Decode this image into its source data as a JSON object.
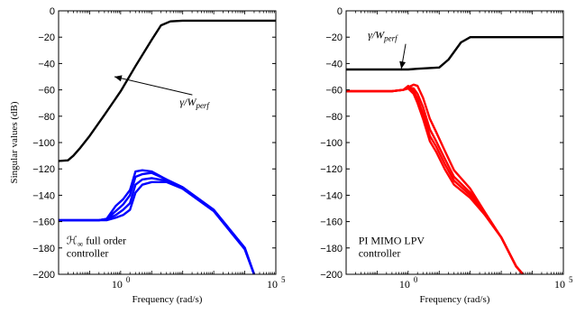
{
  "chart_data": [
    {
      "type": "line",
      "xscale": "log",
      "xlim": [
        0.01,
        100000
      ],
      "ylim": [
        -200,
        0
      ],
      "x_ticks": [
        {
          "value": 1,
          "label": "10",
          "exp": "0"
        },
        {
          "value": 100000,
          "label": "10",
          "exp": "5"
        }
      ],
      "y_ticks": [
        0,
        -20,
        -40,
        -60,
        -80,
        -100,
        -120,
        -140,
        -160,
        -180,
        -200
      ],
      "y_tick_labels": [
        "0",
        "−20",
        "−40",
        "−60",
        "−80",
        "−100",
        "−120",
        "−140",
        "−160",
        "−180",
        "−200"
      ],
      "xlabel": "Frequency (rad/s)",
      "ylabel": "Singular values (dB)",
      "grid": false,
      "annotations": [
        {
          "text_main": "γ/W",
          "text_sub": "perf",
          "arrow_to": [
            0.63,
            -50
          ],
          "text_at": [
            80,
            -72
          ]
        },
        {
          "text_line1_prefix": "ℋ",
          "text_line1_sub": "∞",
          "text_line1_suffix": " full order",
          "text_line2": "controller",
          "text_at": [
            0.018,
            -177
          ]
        }
      ],
      "series": [
        {
          "color": "#000000",
          "x": [
            0.01,
            0.02,
            0.03,
            0.05,
            0.1,
            0.3,
            1,
            3,
            10,
            20,
            40,
            100,
            1000,
            100000
          ],
          "y": [
            -114,
            -113.5,
            -110,
            -104,
            -95,
            -79,
            -61,
            -42,
            -22,
            -11,
            -8,
            -7.5,
            -7.5,
            -7.5
          ]
        },
        {
          "color": "#0000ff",
          "x": [
            0.01,
            0.1,
            0.2,
            0.35,
            0.7,
            1.2,
            2,
            3,
            5,
            10,
            30,
            100,
            1000,
            10000,
            20000
          ],
          "y": [
            -159,
            -159,
            -159,
            -158,
            -148,
            -143,
            -136,
            -122,
            -121,
            -122,
            -128,
            -134,
            -151,
            -180,
            -200
          ]
        },
        {
          "color": "#0000ff",
          "x": [
            0.01,
            0.1,
            0.2,
            0.35,
            0.7,
            1.2,
            2,
            3,
            5,
            10,
            30,
            100,
            1000,
            10000,
            20000
          ],
          "y": [
            -159,
            -159,
            -159,
            -158,
            -152,
            -147,
            -140,
            -126,
            -124,
            -123,
            -128,
            -134,
            -151,
            -180,
            -200
          ]
        },
        {
          "color": "#0000ff",
          "x": [
            0.01,
            0.1,
            0.2,
            0.35,
            0.7,
            1.2,
            2,
            3,
            5,
            10,
            30,
            100,
            1000,
            10000,
            20000
          ],
          "y": [
            -159,
            -159,
            -159,
            -158,
            -155,
            -151,
            -146,
            -132,
            -128,
            -127,
            -129,
            -135,
            -152,
            -181,
            -200
          ]
        },
        {
          "color": "#0000ff",
          "x": [
            0.01,
            0.1,
            0.2,
            0.35,
            0.7,
            1.2,
            2,
            3,
            5,
            10,
            30,
            100,
            1000,
            10000,
            20000
          ],
          "y": [
            -159,
            -159,
            -159,
            -159,
            -157,
            -155,
            -151,
            -138,
            -132,
            -130,
            -130,
            -135,
            -152,
            -181,
            -200
          ]
        }
      ]
    },
    {
      "type": "line",
      "xscale": "log",
      "xlim": [
        0.01,
        100000
      ],
      "ylim": [
        -200,
        0
      ],
      "x_ticks": [
        {
          "value": 1,
          "label": "10",
          "exp": "0"
        },
        {
          "value": 100000,
          "label": "10",
          "exp": "5"
        }
      ],
      "y_ticks": [
        0,
        -20,
        -40,
        -60,
        -80,
        -100,
        -120,
        -140,
        -160,
        -180,
        -200
      ],
      "y_tick_labels": [
        "0",
        "−20",
        "−40",
        "−60",
        "−80",
        "−100",
        "−120",
        "−140",
        "−160",
        "−180",
        "−200"
      ],
      "xlabel": "Frequency (rad/s)",
      "ylabel": "",
      "grid": false,
      "annotations": [
        {
          "text_main": "γ/W",
          "text_sub": "perf",
          "arrow_to": [
            0.6,
            -44
          ],
          "text_at": [
            0.05,
            -21
          ]
        },
        {
          "text_line1": "PI MIMO LPV",
          "text_line2": "controller",
          "text_at": [
            0.025,
            -177
          ]
        }
      ],
      "series": [
        {
          "color": "#000000",
          "x": [
            0.01,
            1,
            2,
            10,
            20,
            50,
            100,
            1000,
            100000
          ],
          "y": [
            -44.5,
            -44.5,
            -44,
            -43,
            -37,
            -24,
            -20,
            -20,
            -20
          ]
        },
        {
          "color": "#ff0000",
          "x": [
            0.01,
            0.3,
            0.7,
            1,
            1.5,
            2,
            3,
            5,
            8,
            15,
            30,
            100,
            300,
            1000,
            3000,
            5000
          ],
          "y": [
            -61,
            -61,
            -60,
            -59,
            -63,
            -70,
            -82,
            -99,
            -107,
            -120,
            -132,
            -142,
            -155,
            -172,
            -194,
            -200
          ]
        },
        {
          "color": "#ff0000",
          "x": [
            0.01,
            0.3,
            0.7,
            1,
            1.5,
            2,
            3,
            5,
            8,
            15,
            30,
            100,
            300,
            1000,
            3000,
            5000
          ],
          "y": [
            -61,
            -61,
            -60,
            -57,
            -61,
            -67,
            -78,
            -95,
            -103,
            -116,
            -129,
            -140,
            -155,
            -172,
            -194,
            -200
          ]
        },
        {
          "color": "#ff0000",
          "x": [
            0.01,
            0.3,
            0.7,
            1,
            1.5,
            2,
            3,
            5,
            8,
            15,
            30,
            100,
            300,
            1000,
            3000,
            5000
          ],
          "y": [
            -61,
            -61,
            -60,
            -58,
            -59,
            -63,
            -73,
            -90,
            -99,
            -112,
            -126,
            -138,
            -154,
            -172,
            -194,
            -200
          ]
        },
        {
          "color": "#ff0000",
          "x": [
            0.01,
            0.3,
            0.7,
            1,
            1.5,
            2,
            3,
            5,
            8,
            15,
            30,
            100,
            300,
            1000,
            3000,
            5000
          ],
          "y": [
            -61,
            -61,
            -60,
            -58,
            -56,
            -57,
            -66,
            -82,
            -92,
            -106,
            -121,
            -135,
            -153,
            -172,
            -194,
            -200
          ]
        }
      ]
    }
  ]
}
